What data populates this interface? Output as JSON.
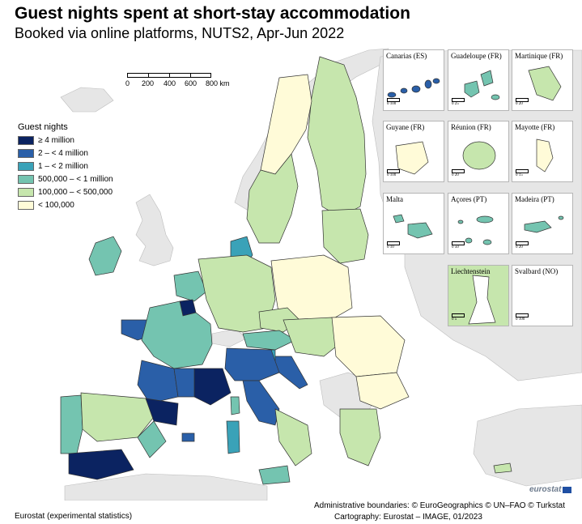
{
  "title": "Guest nights spent at short-stay accommodation",
  "subtitle": "Booked via online platforms, NUTS2, Apr-Jun 2022",
  "legend": {
    "title": "Guest nights",
    "items": [
      {
        "label": "≥ 4 million",
        "color": "#0b2361"
      },
      {
        "label": "2 – < 4 million",
        "color": "#2a5fa8"
      },
      {
        "label": "1 – < 2 million",
        "color": "#3aa2b8"
      },
      {
        "label": "500,000 – < 1 million",
        "color": "#74c4b0"
      },
      {
        "label": "100,000 – < 500,000",
        "color": "#c6e6ad"
      },
      {
        "label": "< 100,000",
        "color": "#fffbd8"
      }
    ]
  },
  "colors": {
    "sea": "#ffffff",
    "nonEU": "#e6e6e6",
    "border": "#333333"
  },
  "scalebar": {
    "labels": [
      "0",
      "200",
      "400",
      "600",
      "800 km"
    ]
  },
  "insets": [
    {
      "label": "Canarias (ES)",
      "fill": "#2a5fa8",
      "scale": "0    100"
    },
    {
      "label": "Guadeloupe (FR)",
      "fill": "#74c4b0",
      "scale": "0   25"
    },
    {
      "label": "Martinique (FR)",
      "fill": "#c6e6ad",
      "scale": "0   20"
    },
    {
      "label": "Guyane (FR)",
      "fill": "#fffbd8",
      "scale": "0   100"
    },
    {
      "label": "Réunion (FR)",
      "fill": "#c6e6ad",
      "scale": "0   20"
    },
    {
      "label": "Mayotte (FR)",
      "fill": "#fffbd8",
      "scale": "0   15"
    },
    {
      "label": "Malta",
      "fill": "#74c4b0",
      "scale": "0   10"
    },
    {
      "label": "Açores (PT)",
      "fill": "#74c4b0",
      "scale": "0   50"
    },
    {
      "label": "Madeira (PT)",
      "fill": "#74c4b0",
      "scale": "0   20"
    },
    {
      "label": "Liechtenstein",
      "fill": "#c6e6ad",
      "scale": "0   5"
    },
    {
      "label": "Svalbard (NO)",
      "fill": "#ffffff",
      "scale": "0   100"
    }
  ],
  "footer": {
    "source": "Eurostat (experimental statistics)",
    "boundaries": "Administrative boundaries: © EuroGeographics © UN–FAO © Turkstat",
    "cartography": "Cartography: Eurostat – IMAGE, 01/2023",
    "logo": "eurostat"
  }
}
